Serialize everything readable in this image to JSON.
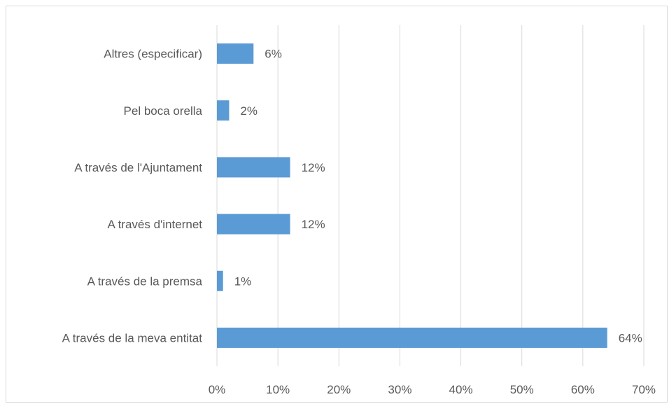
{
  "chart_data": {
    "type": "bar",
    "orientation": "horizontal",
    "categories": [
      "Altres (especificar)",
      "Pel boca orella",
      "A través de l'Ajuntament",
      "A través d'internet",
      "A través de la premsa",
      "A través de la meva entitat"
    ],
    "values": [
      6,
      2,
      12,
      12,
      1,
      64
    ],
    "data_labels": [
      "6%",
      "2%",
      "12%",
      "12%",
      "1%",
      "64%"
    ],
    "x_ticks": [
      "0%",
      "10%",
      "20%",
      "30%",
      "40%",
      "50%",
      "60%",
      "70%"
    ],
    "xlim": [
      0,
      70
    ],
    "title": "",
    "xlabel": "",
    "ylabel": "",
    "grid": "vertical",
    "legend": "none",
    "bar_color": "#5b9bd5"
  }
}
